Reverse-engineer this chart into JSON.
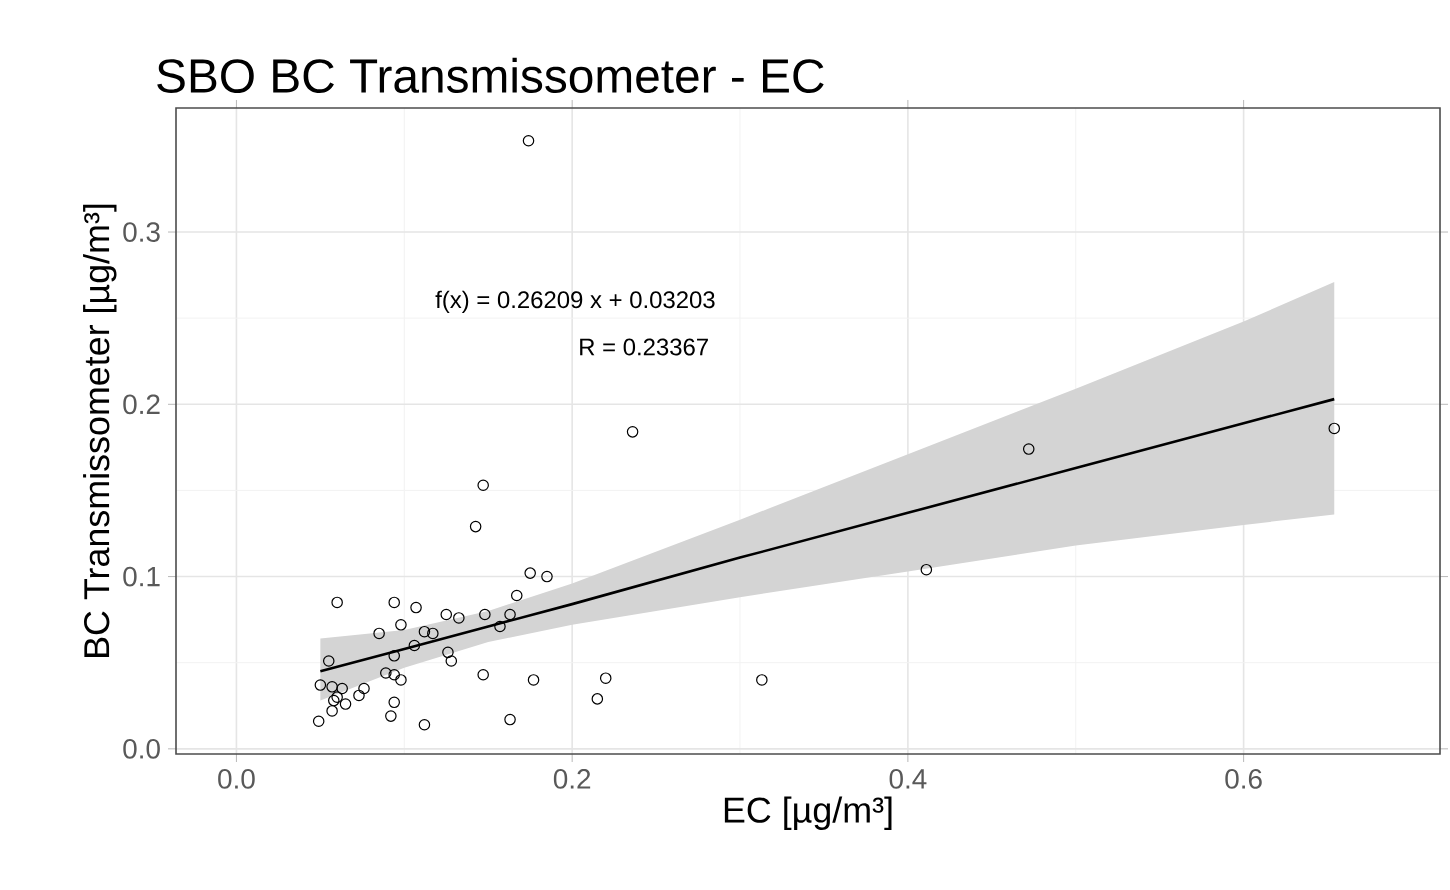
{
  "chart_data": {
    "type": "scatter",
    "title": "SBO BC Transmissometer - EC",
    "xlabel": "EC [µg/m³]",
    "ylabel": "BC Transmissometer [µg/m³]",
    "annotations": [
      "f(x) = 0.26209 x  + 0.03203",
      "R = 0.23367"
    ],
    "xlim": [
      -0.036,
      0.717
    ],
    "ylim": [
      -0.003,
      0.372
    ],
    "xticks": [
      {
        "value": 0,
        "label": "0.0"
      },
      0.2,
      0.4,
      0.6
    ],
    "yticks": [
      {
        "value": 0,
        "label": "0.0"
      },
      0.1,
      0.2,
      0.3
    ],
    "grid": true,
    "series": [
      {
        "marker": "circle",
        "color": "#000000",
        "x": [
          0.147,
          0.1425,
          0.06,
          0.094,
          0.107,
          0.098,
          0.085,
          0.055,
          0.05,
          0.057,
          0.063,
          0.058,
          0.06,
          0.065,
          0.057,
          0.049,
          0.076,
          0.073,
          0.089,
          0.094,
          0.098,
          0.094,
          0.106,
          0.112,
          0.117,
          0.125,
          0.1325,
          0.126,
          0.128,
          0.094,
          0.092,
          0.112,
          0.147,
          0.148,
          0.157,
          0.163,
          0.167,
          0.175,
          0.185,
          0.163,
          0.177,
          0.215,
          0.22,
          0.174,
          0.236,
          0.313,
          0.411,
          0.472,
          0.654
        ],
        "values": [
          0.153,
          0.129,
          0.085,
          0.085,
          0.082,
          0.072,
          0.067,
          0.051,
          0.037,
          0.036,
          0.035,
          0.028,
          0.03,
          0.026,
          0.022,
          0.016,
          0.035,
          0.031,
          0.044,
          0.043,
          0.04,
          0.054,
          0.06,
          0.068,
          0.067,
          0.078,
          0.076,
          0.056,
          0.051,
          0.027,
          0.019,
          0.014,
          0.043,
          0.078,
          0.071,
          0.078,
          0.089,
          0.102,
          0.1,
          0.017,
          0.04,
          0.029,
          0.041,
          0.353,
          0.184,
          0.04,
          0.104,
          0.174,
          0.186
        ]
      },
      {
        "type": "line",
        "color": "#000000",
        "x": [
          0.05,
          0.1,
          0.15,
          0.2,
          0.3,
          0.4,
          0.5,
          0.6,
          0.654
        ],
        "values": [
          0.045,
          0.058,
          0.071,
          0.084,
          0.111,
          0.137,
          0.163,
          0.189,
          0.203
        ],
        "lower": [
          0.028,
          0.047,
          0.062,
          0.072,
          0.088,
          0.103,
          0.118,
          0.13,
          0.136
        ],
        "upper": [
          0.064,
          0.069,
          0.08,
          0.096,
          0.133,
          0.171,
          0.209,
          0.248,
          0.271
        ]
      }
    ]
  }
}
